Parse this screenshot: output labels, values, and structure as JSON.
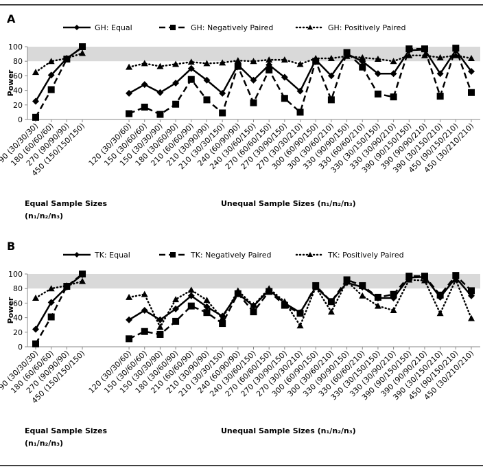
{
  "chart_data": [
    {
      "type": "line",
      "panel_label": "A",
      "y_label": "Power",
      "x_group_labels": [
        "Equal Sample Sizes (n₁/n₂/n₃)",
        "Unequal Sample Sizes (n₁/n₂/n₃)"
      ],
      "categories": [
        "90 (30/30/30)",
        "180 (60/60/60)",
        "270 (90/90/90)",
        "450 (150/150/150)",
        null,
        null,
        "120 (30/30/60)",
        "150 (30/60/60)",
        "150 (30/30/90)",
        "180 (30/60/90)",
        "210 (60/60/90)",
        "210 (30/90/90)",
        "210 (30/30/150)",
        "240 (60/90/90)",
        "240 (30/60/150)",
        "270 (60/60/150)",
        "270 (30/90/150)",
        "270 (30/30/210)",
        "300 (60/90/150)",
        "300 (30/60/210)",
        "330 (90/90/150)",
        "330 (60/60/210)",
        "330 (30/150/150)",
        "330 (30/90/210)",
        "390 (90/150/150)",
        "390 (90/90/210)",
        "390 (30/150/210)",
        "450 (90/150/210)",
        "450 (30/210/210)"
      ],
      "ylim": [
        0,
        100
      ],
      "yticks": [
        0,
        20,
        40,
        60,
        80,
        100
      ],
      "band": [
        80,
        100
      ],
      "band_color": "#d9d9d9",
      "series": [
        {
          "name": "GH: Equal",
          "color": "#000000",
          "marker": "diamond",
          "dash": "solid",
          "values": [
            25,
            61,
            84,
            99,
            null,
            null,
            36,
            48,
            37,
            50,
            70,
            54,
            36,
            75,
            54,
            75,
            58,
            39,
            82,
            60,
            90,
            80,
            63,
            63,
            95,
            96,
            63,
            95,
            66
          ]
        },
        {
          "name": "GH: Negatively Paired",
          "color": "#000000",
          "marker": "square",
          "dash": "dashed",
          "values": [
            3,
            41,
            83,
            100,
            null,
            null,
            8,
            17,
            7,
            21,
            55,
            27,
            9,
            73,
            23,
            68,
            29,
            10,
            80,
            27,
            92,
            72,
            35,
            31,
            97,
            97,
            32,
            98,
            37
          ]
        },
        {
          "name": "GH: Positively Paired",
          "color": "#000000",
          "marker": "triangle",
          "dash": "dotted",
          "values": [
            65,
            80,
            84,
            91,
            null,
            null,
            72,
            77,
            73,
            76,
            79,
            77,
            78,
            81,
            80,
            82,
            82,
            76,
            84,
            84,
            87,
            85,
            83,
            80,
            88,
            88,
            85,
            88,
            84
          ]
        }
      ]
    },
    {
      "type": "line",
      "panel_label": "B",
      "y_label": "Power",
      "x_group_labels": [
        "Equal Sample Sizes (n₁/n₂/n₃)",
        "Unequal Sample Sizes (n₁/n₂/n₃)"
      ],
      "categories": [
        "90 (30/30/30)",
        "180 (60/60/60)",
        "270 (90/90/90)",
        "450 (150/150/150)",
        null,
        null,
        "120 (30/30/60)",
        "150 (30/60/60)",
        "150 (30/30/90)",
        "180 (30/60/90)",
        "210 (60/60/90)",
        "210 (30/90/90)",
        "210 (30/30/150)",
        "240 (60/90/90)",
        "240 (30/60/150)",
        "270 (60/60/150)",
        "270 (30/90/150)",
        "270 (30/30/210)",
        "300 (60/90/150)",
        "300 (30/60/210)",
        "330 (90/90/150)",
        "330 (60/60/210)",
        "330 (30/150/150)",
        "330 (30/90/210)",
        "390 (90/150/150)",
        "390 (90/90/210)",
        "390 (30/150/210)",
        "450 (90/150/210)",
        "450 (30/210/210)"
      ],
      "ylim": [
        0,
        100
      ],
      "yticks": [
        0,
        20,
        40,
        60,
        80,
        100
      ],
      "band": [
        80,
        100
      ],
      "band_color": "#d9d9d9",
      "series": [
        {
          "name": "TK: Equal",
          "color": "#000000",
          "marker": "diamond",
          "dash": "solid",
          "values": [
            24,
            61,
            82,
            99,
            null,
            null,
            37,
            50,
            37,
            52,
            70,
            55,
            42,
            73,
            56,
            78,
            60,
            47,
            82,
            62,
            88,
            82,
            67,
            67,
            95,
            96,
            68,
            95,
            70
          ]
        },
        {
          "name": "TK: Negatively Paired",
          "color": "#000000",
          "marker": "square",
          "dash": "dashed",
          "values": [
            4,
            41,
            83,
            100,
            null,
            null,
            11,
            21,
            17,
            35,
            56,
            47,
            32,
            73,
            48,
            76,
            57,
            46,
            84,
            62,
            92,
            84,
            68,
            72,
            97,
            97,
            71,
            98,
            77
          ]
        },
        {
          "name": "TK: Positively Paired",
          "color": "#000000",
          "marker": "triangle",
          "dash": "dotted",
          "values": [
            67,
            80,
            84,
            90,
            null,
            null,
            68,
            72,
            27,
            65,
            78,
            64,
            39,
            77,
            57,
            80,
            62,
            29,
            82,
            48,
            90,
            70,
            56,
            50,
            92,
            91,
            46,
            92,
            39
          ]
        }
      ]
    }
  ]
}
